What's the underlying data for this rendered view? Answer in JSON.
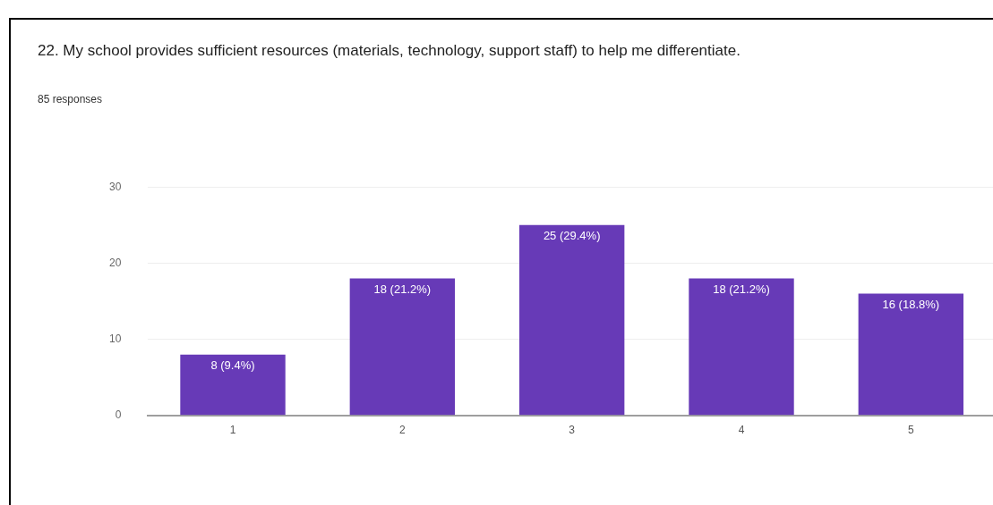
{
  "chart_data": {
    "type": "bar",
    "title": "22.  My school provides sufficient resources (materials, technology, support staff) to help me differentiate.",
    "subtitle": "85 responses",
    "categories": [
      "1",
      "2",
      "3",
      "4",
      "5"
    ],
    "values": [
      8,
      18,
      25,
      18,
      16
    ],
    "value_labels": [
      "8 (9.4%)",
      "18 (21.2%)",
      "25 (29.4%)",
      "18 (21.2%)",
      "16 (18.8%)"
    ],
    "color": "#673ab7",
    "ylim": [
      0,
      30
    ],
    "yticks": [
      0,
      10,
      20,
      30
    ],
    "grid": "y",
    "legend": false
  }
}
